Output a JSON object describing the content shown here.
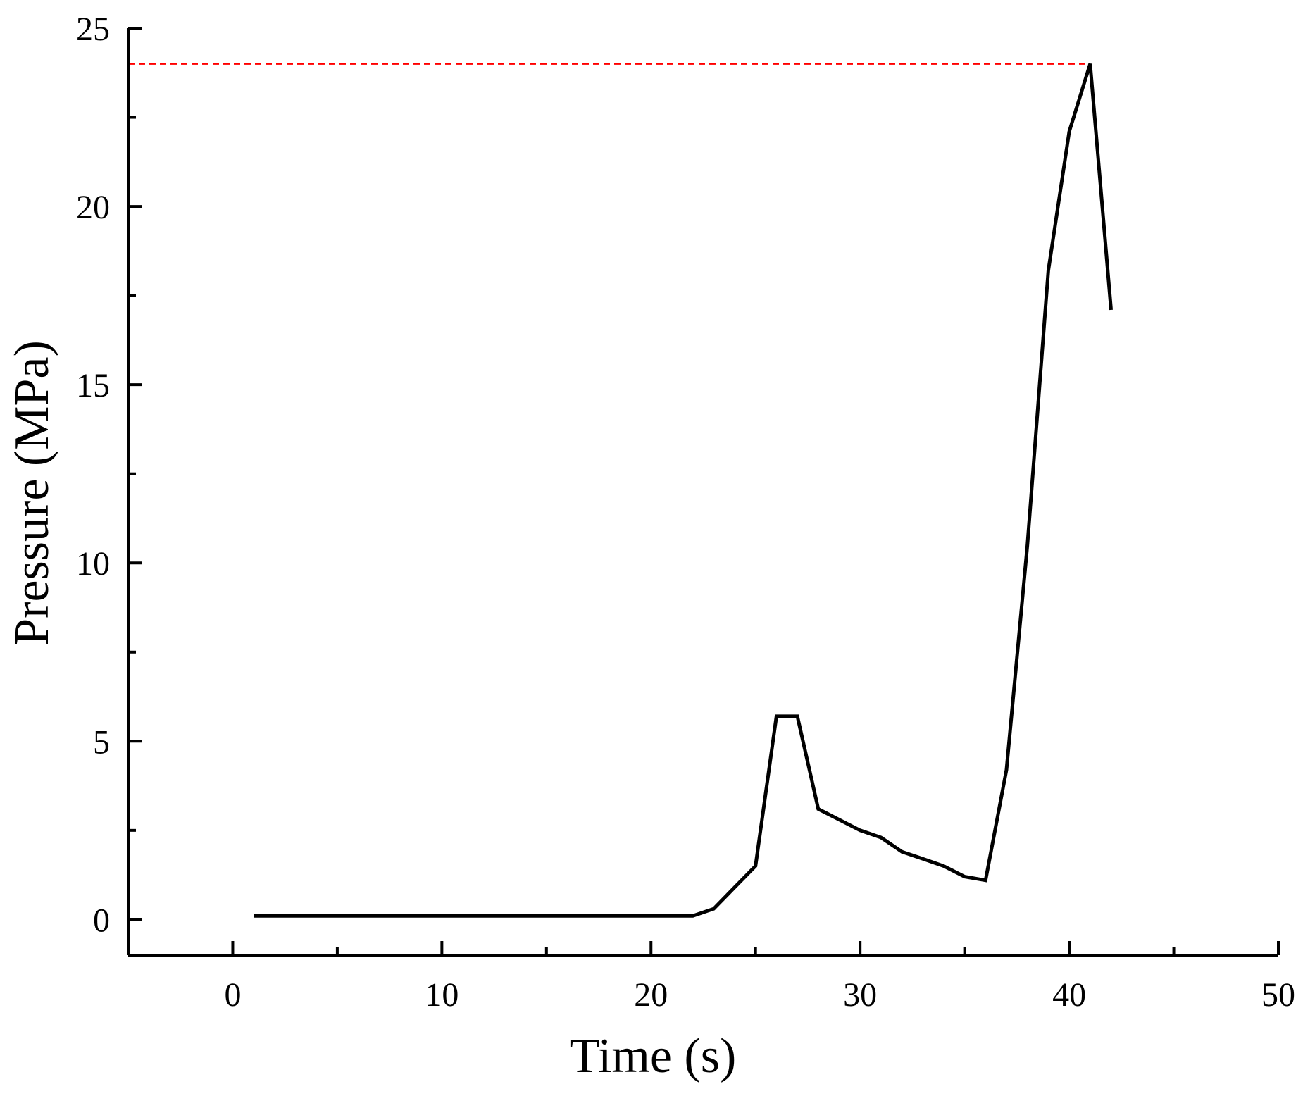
{
  "chart_data": {
    "type": "line",
    "xlabel": "Time (s)",
    "ylabel": "Pressure (MPa)",
    "xlim": [
      -5,
      50
    ],
    "ylim": [
      -1,
      25
    ],
    "x_ticks": [
      0,
      10,
      20,
      30,
      40,
      50
    ],
    "x_minor_ticks": [
      5,
      15,
      25,
      35,
      45
    ],
    "y_ticks": [
      0,
      5,
      10,
      15,
      20,
      25
    ],
    "y_minor_ticks": [
      2.5,
      7.5,
      12.5,
      17.5,
      22.5
    ],
    "grid": false,
    "legend": "none",
    "series": [
      {
        "color": "#000000",
        "x": [
          1,
          22,
          23,
          24,
          25,
          26,
          27,
          28,
          29,
          30,
          31,
          32,
          33,
          34,
          35,
          36,
          37,
          38,
          39,
          40,
          41,
          42
        ],
        "y": [
          0.1,
          0.1,
          0.3,
          0.9,
          1.5,
          5.7,
          5.7,
          3.1,
          2.8,
          2.5,
          2.3,
          1.9,
          1.7,
          1.5,
          1.2,
          1.1,
          4.2,
          10.5,
          18.2,
          22.1,
          24.0,
          17.1
        ]
      }
    ],
    "reference_lines": [
      {
        "orientation": "horizontal",
        "y": 24.0,
        "x_from": -5,
        "x_to": 41,
        "color": "#ff0000",
        "style": "dashed"
      }
    ]
  }
}
